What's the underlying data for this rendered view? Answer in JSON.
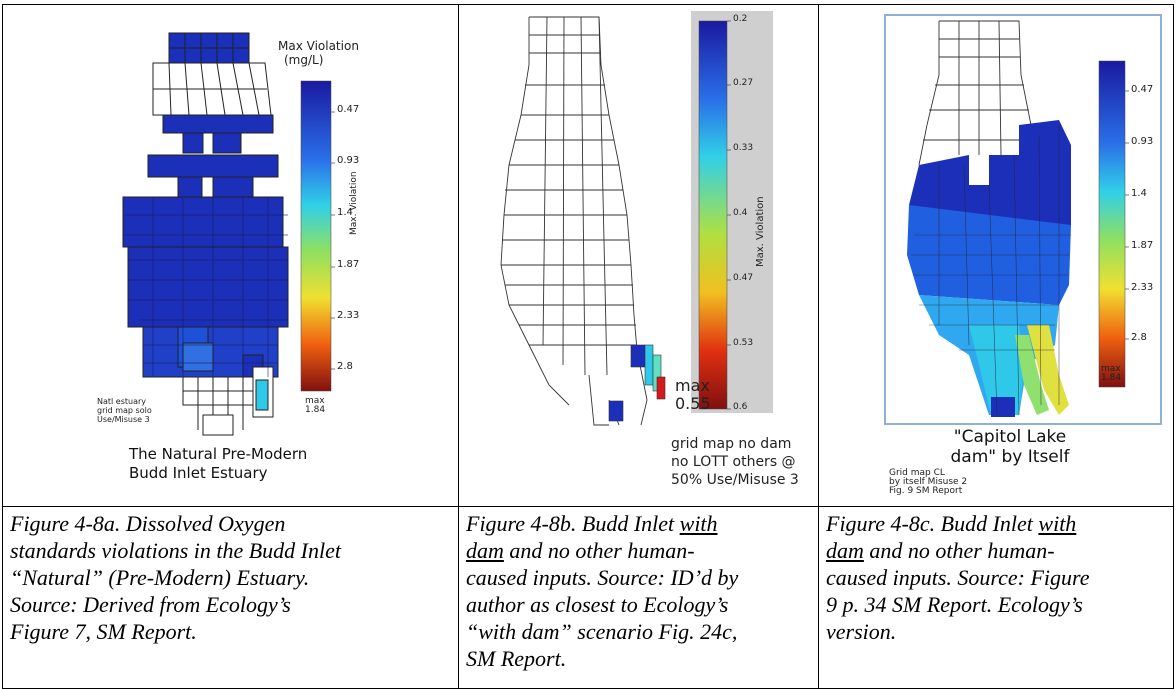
{
  "panel_a": {
    "legend_title": "Max Violation",
    "legend_unit": "(mg/L)",
    "ticks": [
      "0.47",
      "0.93",
      "1.4",
      "1.87",
      "2.33",
      "2.8"
    ],
    "axis_label": "Max. Violation",
    "max_label": "max",
    "max_value": "1.84",
    "note_lines": [
      "Natl estuary",
      "grid map solo",
      "Use/Misuse 3"
    ],
    "title_lines": [
      "The Natural Pre-Modern",
      "Budd Inlet Estuary"
    ]
  },
  "panel_b": {
    "ticks": [
      "0.2",
      "0.27",
      "0.33",
      "0.4",
      "0.47",
      "0.53",
      "0.6"
    ],
    "axis_label": "Max. Violation",
    "max_label": "max",
    "max_value": "0.55",
    "note_lines": [
      "grid map no dam",
      "no LOTT others @",
      "50% Use/Misuse 3"
    ]
  },
  "panel_c": {
    "ticks": [
      "0.47",
      "0.93",
      "1.4",
      "1.87",
      "2.33",
      "2.8"
    ],
    "max_label": "max",
    "max_value": "1.84",
    "title_lines": [
      "\"Capitol Lake",
      "dam\" by Itself"
    ],
    "note_lines": [
      "Grid map CL",
      "by itself Misuse 2",
      "Fig. 9 SM Report"
    ]
  },
  "captions": {
    "a": {
      "lines": [
        "Figure 4-8a.  Dissolved Oxygen",
        "standards violations in the Budd Inlet",
        "“Natural” (Pre-Modern) Estuary.",
        "Source: Derived from Ecology’s",
        "Figure 7, SM Report."
      ]
    },
    "b": {
      "l1a": "Figure 4-8b.  Budd Inlet ",
      "l1u": "with",
      "l2u": "dam",
      "l2b": " and no other human-",
      "l3": "caused inputs.  Source: ID’d by",
      "l4": "author as closest to Ecology’s",
      "l5": "“with dam” scenario Fig. 24c,",
      "l6": "SM Report."
    },
    "c": {
      "l1a": "Figure 4-8c.  Budd Inlet ",
      "l1u": "with",
      "l2u": "dam",
      "l2b": " and no other human-",
      "l3": "caused inputs.  Source: Figure",
      "l4": "9 p. 34 SM Report. Ecology’s",
      "l5": "version."
    }
  },
  "colors": {
    "dark_blue": "#1c2fb8",
    "mid_blue": "#1f5fe0",
    "cyan": "#30c8e8",
    "yellow": "#e8e040",
    "red": "#c81818"
  }
}
